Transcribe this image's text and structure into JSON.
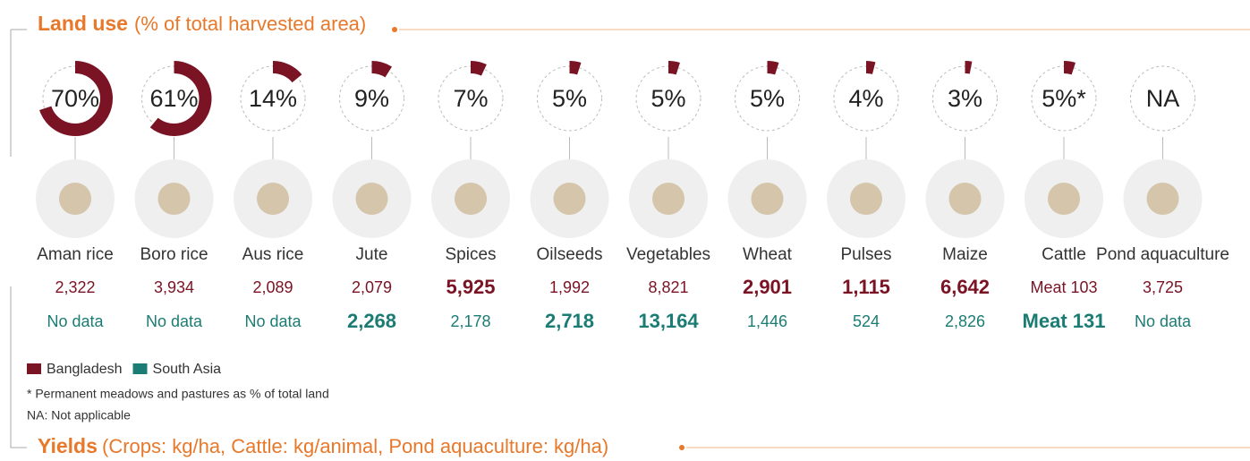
{
  "header": {
    "title": "Land use",
    "subtitle": "(% of total harvested area)"
  },
  "yields_header": {
    "title": "Yields",
    "subtitle": "(Crops: kg/ha,  Cattle: kg/animal, Pond aquaculture: kg/ha)"
  },
  "legend": [
    {
      "name": "Bangladesh",
      "color": "#7a1323"
    },
    {
      "name": "South Asia",
      "color": "#1b7c74"
    }
  ],
  "notes": [
    "* Permanent meadows and pastures as % of total land",
    "NA: Not applicable"
  ],
  "items": [
    {
      "name": "Aman rice",
      "land_use": 70,
      "land_use_label": "70%",
      "bangladesh": 2322,
      "bangladesh_label": "2,322",
      "south_asia": null,
      "south_asia_label": "No data"
    },
    {
      "name": "Boro rice",
      "land_use": 61,
      "land_use_label": "61%",
      "bangladesh": 3934,
      "bangladesh_label": "3,934",
      "south_asia": null,
      "south_asia_label": "No data"
    },
    {
      "name": "Aus rice",
      "land_use": 14,
      "land_use_label": "14%",
      "bangladesh": 2089,
      "bangladesh_label": "2,089",
      "south_asia": null,
      "south_asia_label": "No data"
    },
    {
      "name": "Jute",
      "land_use": 9,
      "land_use_label": "9%",
      "bangladesh": 2079,
      "bangladesh_label": "2,079",
      "south_asia": 2268,
      "south_asia_label": "2,268"
    },
    {
      "name": "Spices",
      "land_use": 7,
      "land_use_label": "7%",
      "bangladesh": 5925,
      "bangladesh_label": "5,925",
      "south_asia": 2178,
      "south_asia_label": "2,178"
    },
    {
      "name": "Oilseeds",
      "land_use": 5,
      "land_use_label": "5%",
      "bangladesh": 1992,
      "bangladesh_label": "1,992",
      "south_asia": 2718,
      "south_asia_label": "2,718"
    },
    {
      "name": "Vegetables",
      "land_use": 5,
      "land_use_label": "5%",
      "bangladesh": 8821,
      "bangladesh_label": "8,821",
      "south_asia": 13164,
      "south_asia_label": "13,164"
    },
    {
      "name": "Wheat",
      "land_use": 5,
      "land_use_label": "5%",
      "bangladesh": 2901,
      "bangladesh_label": "2,901",
      "south_asia": 1446,
      "south_asia_label": "1,446"
    },
    {
      "name": "Pulses",
      "land_use": 4,
      "land_use_label": "4%",
      "bangladesh": 1115,
      "bangladesh_label": "1,115",
      "south_asia": 524,
      "south_asia_label": "524"
    },
    {
      "name": "Maize",
      "land_use": 3,
      "land_use_label": "3%",
      "bangladesh": 6642,
      "bangladesh_label": "6,642",
      "south_asia": 2826,
      "south_asia_label": "2,826"
    },
    {
      "name": "Cattle",
      "land_use": 5,
      "land_use_label": "5%*",
      "bangladesh": 103,
      "bangladesh_label": "Meat 103",
      "south_asia": 131,
      "south_asia_label": "Meat 131"
    },
    {
      "name": "Pond aquaculture",
      "land_use": null,
      "land_use_label": "NA",
      "bangladesh": 3725,
      "bangladesh_label": "3,725",
      "south_asia": null,
      "south_asia_label": "No data"
    }
  ]
}
